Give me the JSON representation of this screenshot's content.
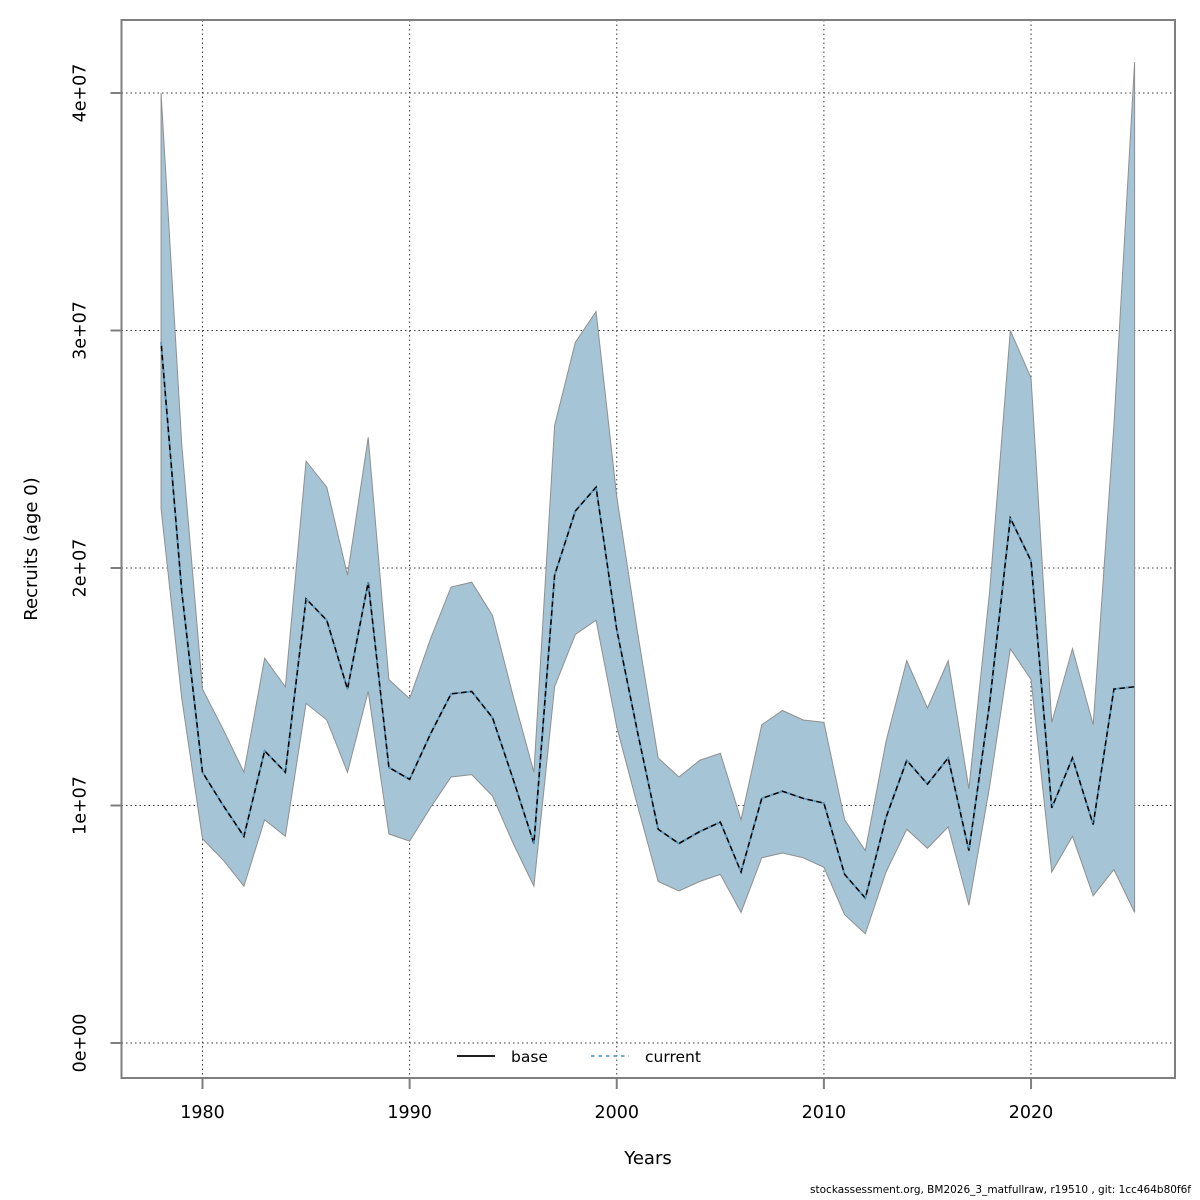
{
  "footer": {
    "text": "stockassessment.org, BM2026_3_matfullraw, r19510 , git: 1cc464b80f6f"
  },
  "legend": {
    "position": "bottom-center-inside",
    "items": [
      {
        "label": "base",
        "style": "solid",
        "color": "#000000"
      },
      {
        "label": "current",
        "style": "dashed",
        "color": "#5b9fc9"
      }
    ]
  },
  "axes": {
    "x": {
      "title": "Years",
      "ticks": [
        1980,
        1990,
        2000,
        2010,
        2020
      ],
      "range": [
        1976.09,
        2026.95
      ],
      "grid": true
    },
    "y": {
      "title": "Recruits (age 0)",
      "tick_labels": [
        "0e+00",
        "1e+07",
        "2e+07",
        "3e+07",
        "4e+07"
      ],
      "tick_values": [
        0,
        10000000,
        20000000,
        30000000,
        40000000
      ],
      "range": [
        -1474000,
        43074000
      ],
      "grid": true
    }
  },
  "colors": {
    "band_fill": "#a5c5d7",
    "band_edge": "#8f8f8f",
    "base_line": "#000000",
    "current_line": "#5b9fc9",
    "grid": "#3a3a3a",
    "frame": "#7f7f7f"
  },
  "chart_data": {
    "type": "line",
    "title": "",
    "xlabel": "Years",
    "ylabel": "Recruits (age 0)",
    "x": [
      1978,
      1979,
      1980,
      1981,
      1982,
      1983,
      1984,
      1985,
      1986,
      1987,
      1988,
      1989,
      1990,
      1991,
      1992,
      1993,
      1994,
      1995,
      1996,
      1997,
      1998,
      1999,
      2000,
      2001,
      2002,
      2003,
      2004,
      2005,
      2006,
      2007,
      2008,
      2009,
      2010,
      2011,
      2012,
      2013,
      2014,
      2015,
      2016,
      2017,
      2018,
      2019,
      2020,
      2021,
      2022,
      2023,
      2024,
      2025
    ],
    "series": [
      {
        "name": "base",
        "style": "solid",
        "color": "#000000",
        "values": [
          29500000,
          19000000,
          11400000,
          10000000,
          8700000,
          12300000,
          11400000,
          18700000,
          17800000,
          14900000,
          19400000,
          11600000,
          11100000,
          13000000,
          14700000,
          14800000,
          13700000,
          11100000,
          8400000,
          19700000,
          22400000,
          23400000,
          17400000,
          13100000,
          9000000,
          8400000,
          8900000,
          9300000,
          7200000,
          10300000,
          10600000,
          10300000,
          10100000,
          7100000,
          6100000,
          9500000,
          11900000,
          10900000,
          12000000,
          8100000,
          14300000,
          22100000,
          20300000,
          9900000,
          12000000,
          9200000,
          14900000,
          15000000
        ]
      },
      {
        "name": "current",
        "style": "dashed",
        "color": "#5b9fc9",
        "values": [
          29500000,
          19000000,
          11400000,
          10000000,
          8700000,
          12300000,
          11400000,
          18700000,
          17800000,
          14900000,
          19400000,
          11600000,
          11100000,
          13000000,
          14700000,
          14800000,
          13700000,
          11100000,
          8400000,
          19700000,
          22400000,
          23400000,
          17400000,
          13100000,
          9000000,
          8400000,
          8900000,
          9300000,
          7200000,
          10300000,
          10600000,
          10300000,
          10100000,
          7100000,
          6100000,
          9500000,
          11900000,
          10900000,
          12000000,
          8100000,
          14300000,
          22100000,
          20300000,
          9900000,
          12000000,
          9200000,
          14900000,
          15000000
        ]
      }
    ],
    "band": {
      "name": "confidence-band",
      "color": "#a5c5d7",
      "lower": [
        22500000,
        14500000,
        8600000,
        7700000,
        6600000,
        9400000,
        8700000,
        14300000,
        13600000,
        11400000,
        14800000,
        8800000,
        8500000,
        9900000,
        11200000,
        11300000,
        10400000,
        8400000,
        6600000,
        15000000,
        17200000,
        17800000,
        13300000,
        10000000,
        6800000,
        6400000,
        6800000,
        7100000,
        5500000,
        7800000,
        8000000,
        7800000,
        7400000,
        5400000,
        4600000,
        7200000,
        9000000,
        8200000,
        9100000,
        5800000,
        10800000,
        16600000,
        15300000,
        7200000,
        8700000,
        6200000,
        7300000,
        5500000
      ],
      "upper": [
        40000000,
        25200000,
        14900000,
        13200000,
        11400000,
        16200000,
        15000000,
        24500000,
        23400000,
        19700000,
        25500000,
        15300000,
        14500000,
        17000000,
        19200000,
        19400000,
        18000000,
        14600000,
        11400000,
        26000000,
        29500000,
        30800000,
        23000000,
        17300000,
        12000000,
        11200000,
        11900000,
        12200000,
        9400000,
        13400000,
        14000000,
        13600000,
        13500000,
        9400000,
        8100000,
        12700000,
        16100000,
        14100000,
        16100000,
        10700000,
        19000000,
        30000000,
        28000000,
        13500000,
        16600000,
        13400000,
        26000000,
        41300000
      ]
    },
    "legend_entries": [
      "base",
      "current"
    ],
    "grid": true
  }
}
